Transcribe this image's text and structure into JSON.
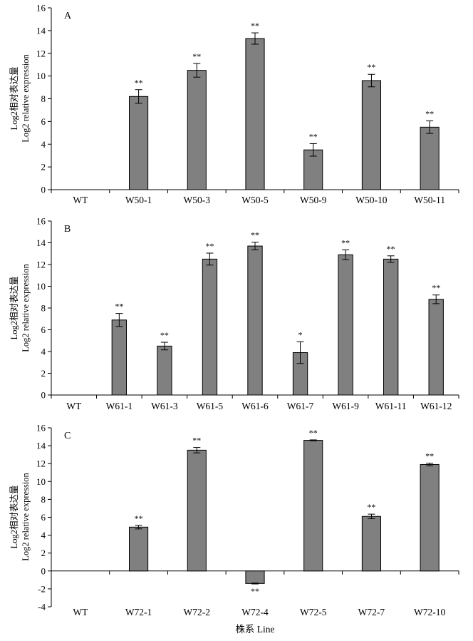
{
  "chart_data": [
    {
      "type": "bar",
      "panel_label": "A",
      "ylabel_zh": "Log2相对表达量",
      "ylabel_en": "Log2 relative expression",
      "ylim": [
        0,
        16
      ],
      "yticks": [
        0,
        2,
        4,
        6,
        8,
        10,
        12,
        14,
        16
      ],
      "categories": [
        "WT",
        "W50-1",
        "W50-3",
        "W50-5",
        "W50-9",
        "W50-10",
        "W50-11"
      ],
      "values": [
        0,
        8.2,
        10.5,
        13.3,
        3.5,
        9.6,
        5.5
      ],
      "errors": [
        0,
        0.6,
        0.6,
        0.5,
        0.55,
        0.55,
        0.55
      ],
      "significance": [
        "",
        "**",
        "**",
        "**",
        "**",
        "**",
        "**"
      ],
      "bar_color": "#808080"
    },
    {
      "type": "bar",
      "panel_label": "B",
      "ylabel_zh": "Log2相对表达量",
      "ylabel_en": "Log2 relative expression",
      "ylim": [
        0,
        16
      ],
      "yticks": [
        0,
        2,
        4,
        6,
        8,
        10,
        12,
        14,
        16
      ],
      "categories": [
        "WT",
        "W61-1",
        "W61-3",
        "W61-5",
        "W61-6",
        "W61-7",
        "W61-9",
        "W61-11",
        "W61-12"
      ],
      "values": [
        0,
        6.9,
        4.5,
        12.5,
        13.7,
        3.9,
        12.9,
        12.5,
        8.8
      ],
      "errors": [
        0,
        0.6,
        0.35,
        0.55,
        0.35,
        1.0,
        0.45,
        0.3,
        0.4
      ],
      "significance": [
        "",
        "**",
        "**",
        "**",
        "**",
        "*",
        "**",
        "**",
        "**"
      ],
      "bar_color": "#808080"
    },
    {
      "type": "bar",
      "panel_label": "C",
      "ylabel_zh": "Log2相对表达量",
      "ylabel_en": "Log2 relative expression",
      "ylim": [
        -4,
        16
      ],
      "yticks": [
        -4,
        -2,
        0,
        2,
        4,
        6,
        8,
        10,
        12,
        14,
        16
      ],
      "categories": [
        "WT",
        "W72-1",
        "W72-2",
        "W72-4",
        "W72-5",
        "W72-7",
        "W72-10"
      ],
      "values": [
        0,
        4.9,
        13.5,
        -1.4,
        14.6,
        6.1,
        11.9
      ],
      "errors": [
        0,
        0.2,
        0.3,
        0.05,
        0.05,
        0.25,
        0.15
      ],
      "significance": [
        "",
        "**",
        "**",
        "**",
        "**",
        "**",
        "**"
      ],
      "bar_color": "#808080",
      "xlabel": "株系 Line"
    }
  ]
}
